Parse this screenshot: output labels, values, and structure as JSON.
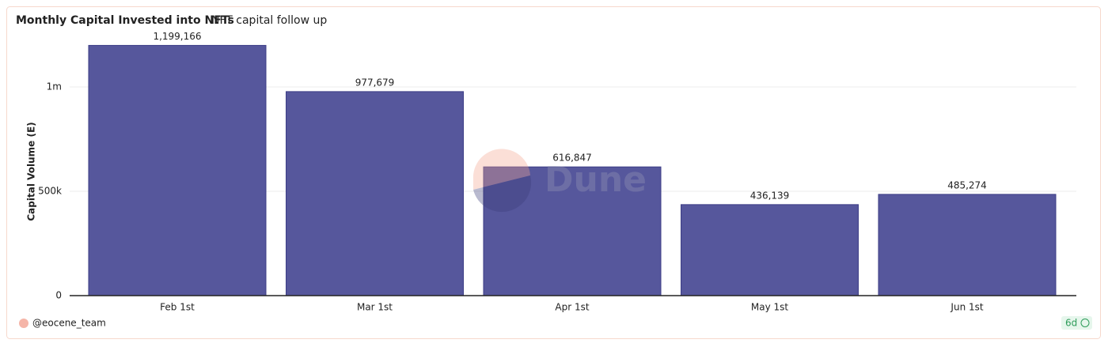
{
  "chart_data": {
    "type": "bar",
    "title": "Monthly Capital Invested into NFTs",
    "subtitle": "NFT capital follow up",
    "y_label": "Capital Volume (E)",
    "categories": [
      "Feb 1st",
      "Mar 1st",
      "Apr 1st",
      "May 1st",
      "Jun 1st"
    ],
    "values": [
      1199166,
      977679,
      616847,
      436139,
      485274
    ],
    "value_labels": [
      "1,199,166",
      "977,679",
      "616,847",
      "436,139",
      "485,274"
    ],
    "color": "#56579c",
    "ylim": [
      0,
      1250000
    ],
    "yticks": [
      0,
      {
        "value": 500000,
        "label": "500k"
      },
      {
        "value": 1000000,
        "label": "1m"
      }
    ],
    "grid": true,
    "watermark": "Dune",
    "author": "@eocene_team",
    "age": "6d"
  }
}
